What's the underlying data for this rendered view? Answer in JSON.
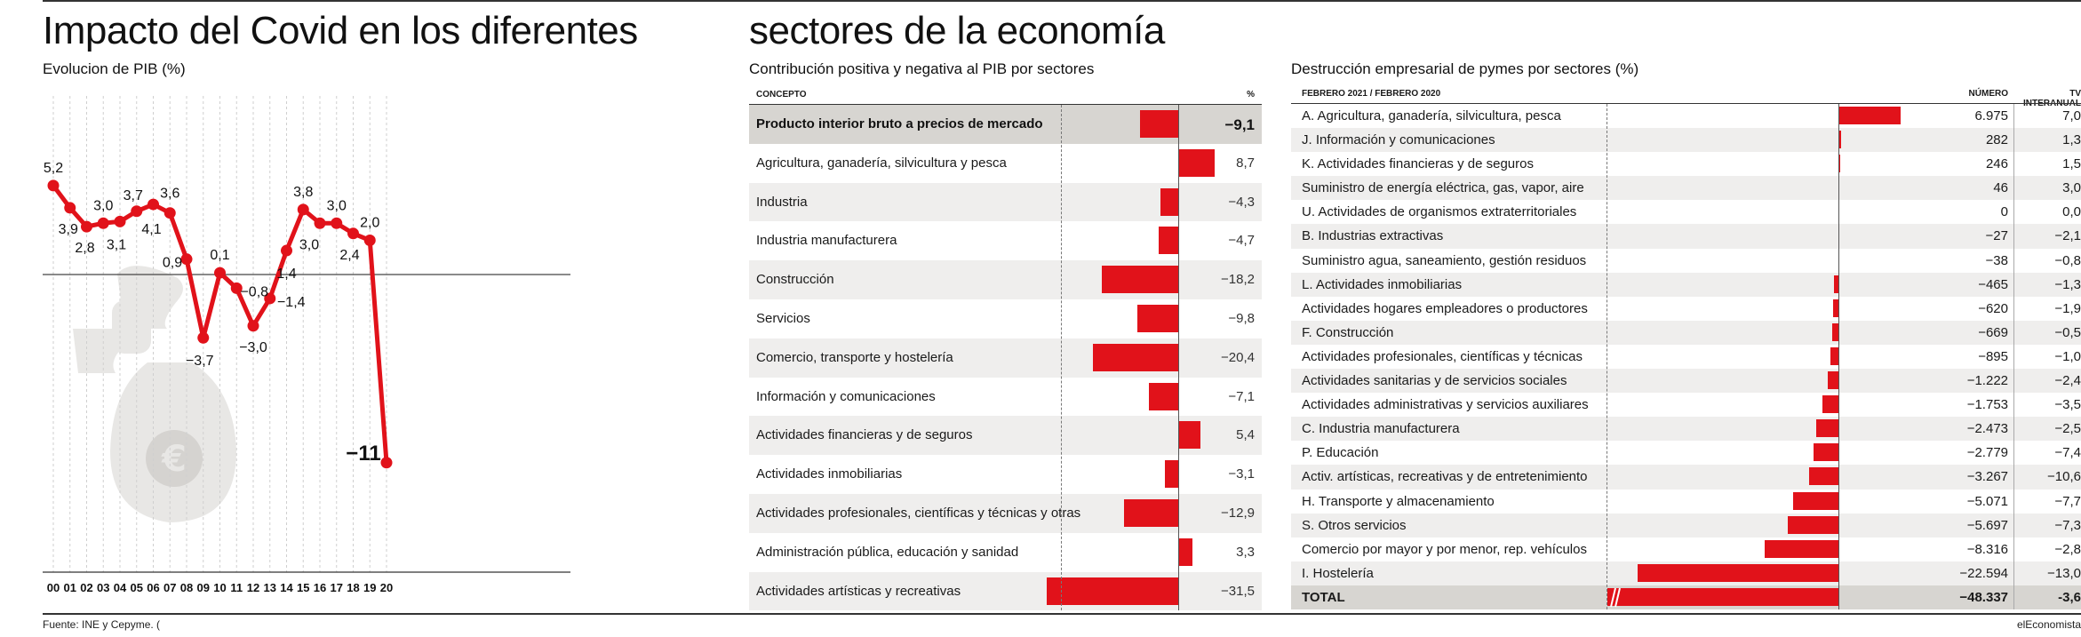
{
  "title_left": "Impacto del Covid en los diferentes",
  "title_right": "sectores de la economía",
  "source": "Fuente: INE y Cepyme. (",
  "brand": "elEconomista",
  "accent": "#e1121a",
  "icon": "money-bag-euro-icon",
  "chart_data": [
    {
      "type": "line",
      "title": "Evolucion de PIB (%)",
      "x": [
        "00",
        "01",
        "02",
        "03",
        "04",
        "05",
        "06",
        "07",
        "08",
        "09",
        "10",
        "11",
        "12",
        "13",
        "14",
        "15",
        "16",
        "17",
        "18",
        "19",
        "20"
      ],
      "series": [
        {
          "values": [
            5.2,
            3.9,
            2.8,
            3.0,
            3.1,
            3.7,
            4.1,
            3.6,
            0.9,
            -3.7,
            0.1,
            -0.8,
            -3.0,
            -1.4,
            1.4,
            3.8,
            3.0,
            3.0,
            2.4,
            2.0,
            -11
          ]
        }
      ],
      "labels": [
        "5,2",
        "3,9",
        "2,8",
        "3,0",
        "3,1",
        "3,7",
        "4,1",
        "3,6",
        "0,9",
        "−3,7",
        "0,1",
        "−0,8",
        "−3,0",
        "−1,4",
        "1,4",
        "3,8",
        "3,0",
        "3,0",
        "2,4",
        "2,0",
        "−11"
      ],
      "ylim": [
        -11,
        5.2
      ],
      "grid": "vertical dashed"
    },
    {
      "type": "bar",
      "title": "Contribución positiva y negativa al PIB por sectores",
      "header_concept": "CONCEPTO",
      "header_value": "%",
      "categories": [
        "Producto interior bruto a precios de mercado",
        "Agricultura, ganadería, silvicultura y pesca",
        "Industria",
        "Industria manufacturera",
        "Construcción",
        "Servicios",
        "Comercio, transporte y hostelería",
        "Información y comunicaciones",
        "Actividades financieras y de seguros",
        "Actividades inmobiliarias",
        "Actividades profesionales, científicas y técnicas y otras",
        "Administración pública, educación y sanidad",
        "Actividades artísticas y recreativas"
      ],
      "values": [
        -9.1,
        8.7,
        -4.3,
        -4.7,
        -18.2,
        -9.8,
        -20.4,
        -7.1,
        5.4,
        -3.1,
        -12.9,
        3.3,
        -31.5
      ],
      "labels": [
        "−9,1",
        "8,7",
        "−4,3",
        "−4,7",
        "−18,2",
        "−9,8",
        "−20,4",
        "−7,1",
        "5,4",
        "−3,1",
        "−12,9",
        "3,3",
        "−31,5"
      ]
    },
    {
      "type": "table",
      "title": "Destrucción empresarial de pymes por sectores (%)",
      "header_period": "FEBRERO 2021 / FEBRERO 2020",
      "header_number": "NÚMERO",
      "header_tv": "TV INTERANUAL",
      "categories": [
        "A. Agricultura, ganadería, silvicultura, pesca",
        "J. Información y comunicaciones",
        "K. Actividades financieras y de seguros",
        "Suministro de energía eléctrica, gas, vapor, aire",
        "U. Actividades de organismos extraterritoriales",
        "B. Industrias extractivas",
        "Suministro agua, saneamiento, gestión residuos",
        "L. Actividades inmobiliarias",
        "Actividades hogares empleadores o productores",
        "F. Construcción",
        "Actividades profesionales, científicas y técnicas",
        "Actividades sanitarias y de servicios sociales",
        "Actividades administrativas y servicios auxiliares",
        "C. Industria manufacturera",
        "P. Educación",
        "Activ. artísticas, recreativas y de entretenimiento",
        "H. Transporte y almacenamiento",
        "S. Otros servicios",
        "Comercio por mayor y por menor, rep. vehículos",
        "I. Hostelería",
        "TOTAL"
      ],
      "values": [
        6975,
        282,
        246,
        46,
        0,
        -27,
        -38,
        -465,
        -620,
        -669,
        -895,
        -1222,
        -1753,
        -2473,
        -2779,
        -3267,
        -5071,
        -5697,
        -8316,
        -22594,
        -48337
      ],
      "number_labels": [
        "6.975",
        "282",
        "246",
        "46",
        "0",
        "−27",
        "−38",
        "−465",
        "−620",
        "−669",
        "−895",
        "−1.222",
        "−1.753",
        "−2.473",
        "−2.779",
        "−3.267",
        "−5.071",
        "−5.697",
        "−8.316",
        "−22.594",
        "−48.337"
      ],
      "tv_labels": [
        "7,0",
        "1,3",
        "1,5",
        "3,0",
        "0,0",
        "−2,1",
        "−0,8",
        "−1,3",
        "−1,9",
        "−0,5",
        "−1,0",
        "−2,4",
        "−3,5",
        "−2,5",
        "−7,4",
        "−10,6",
        "−7,7",
        "−7,3",
        "−2,8",
        "−13,0",
        "-3,6"
      ]
    }
  ]
}
